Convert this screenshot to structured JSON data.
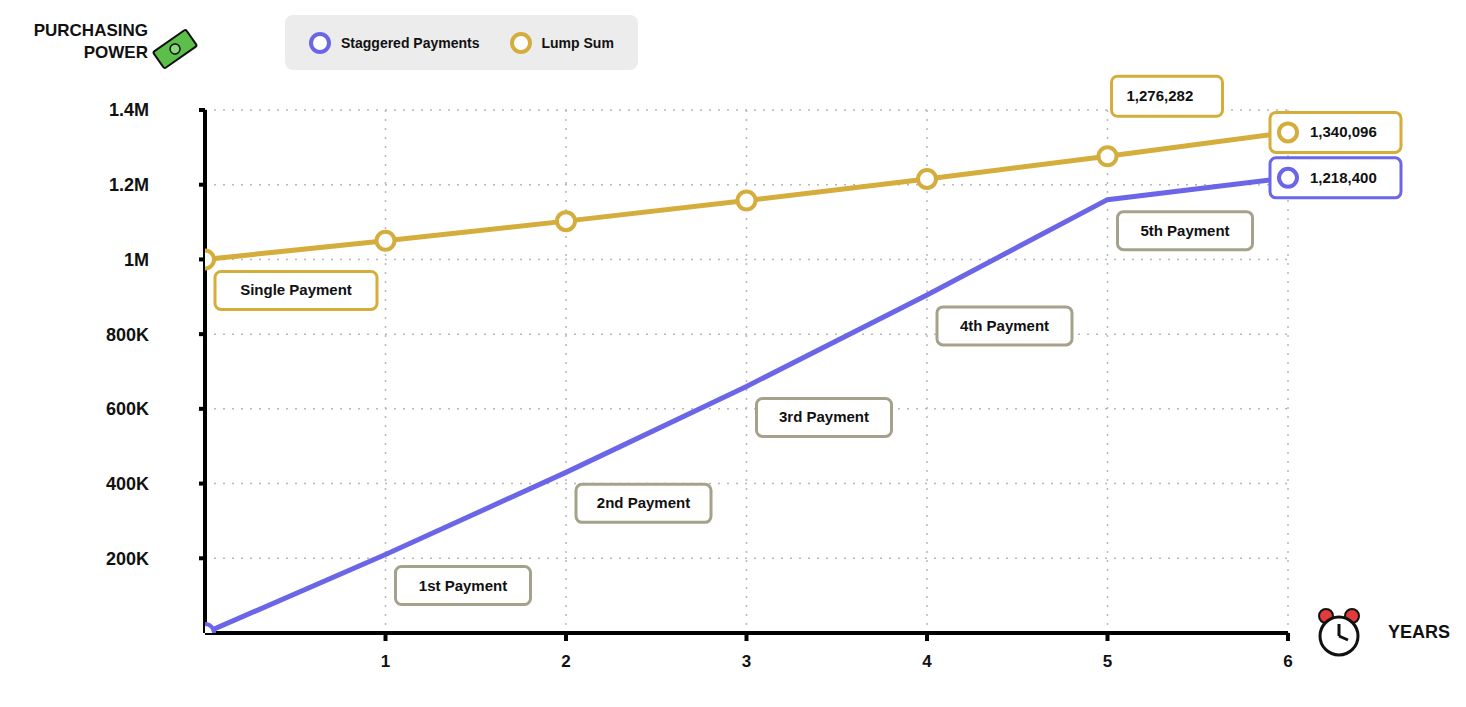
{
  "chart_data": {
    "type": "line",
    "y_label": "PURCHASING POWER",
    "x_label": "YEARS",
    "x": [
      0,
      1,
      2,
      3,
      4,
      5,
      6
    ],
    "series": [
      {
        "name": "Staggered Payments",
        "color": "#6b66e8",
        "marker": "circle_ends",
        "values": [
          0,
          210000,
          430000,
          660000,
          905000,
          1160000,
          1218400
        ],
        "value_labels": [
          null,
          null,
          null,
          null,
          null,
          null,
          "1,218,400"
        ]
      },
      {
        "name": "Lump Sum",
        "color": "#d4ad3c",
        "marker": "circle",
        "values": [
          1000000,
          1050000,
          1102500,
          1157625,
          1215506,
          1276282,
          1340096
        ],
        "value_labels": [
          null,
          null,
          null,
          null,
          null,
          "1,276,282",
          "1,340,096"
        ]
      }
    ],
    "xlim": [
      0,
      6
    ],
    "xticks": [
      1,
      2,
      3,
      4,
      5,
      6
    ],
    "ylim": [
      0,
      1400000
    ],
    "yticks": [
      {
        "value": 200000,
        "label": "200K"
      },
      {
        "value": 400000,
        "label": "400K"
      },
      {
        "value": 600000,
        "label": "600K"
      },
      {
        "value": 800000,
        "label": "800K"
      },
      {
        "value": 1000000,
        "label": "1M"
      },
      {
        "value": 1200000,
        "label": "1.2M"
      },
      {
        "value": 1400000,
        "label": "1.4M"
      }
    ],
    "grid": true,
    "legend": "top",
    "annotations": [
      {
        "text": "Single Payment",
        "x": 0,
        "series": "Lump Sum",
        "color": "#d4ad3c"
      },
      {
        "text": "1st Payment",
        "x": 1,
        "series": "Staggered Payments",
        "color": "#a5a28c"
      },
      {
        "text": "2nd Payment",
        "x": 2,
        "series": "Staggered Payments",
        "color": "#a5a28c"
      },
      {
        "text": "3rd Payment",
        "x": 3,
        "series": "Staggered Payments",
        "color": "#a5a28c"
      },
      {
        "text": "4th Payment",
        "x": 4,
        "series": "Staggered Payments",
        "color": "#a5a28c"
      },
      {
        "text": "5th Payment",
        "x": 5,
        "series": "Staggered Payments",
        "color": "#a5a28c"
      }
    ]
  }
}
